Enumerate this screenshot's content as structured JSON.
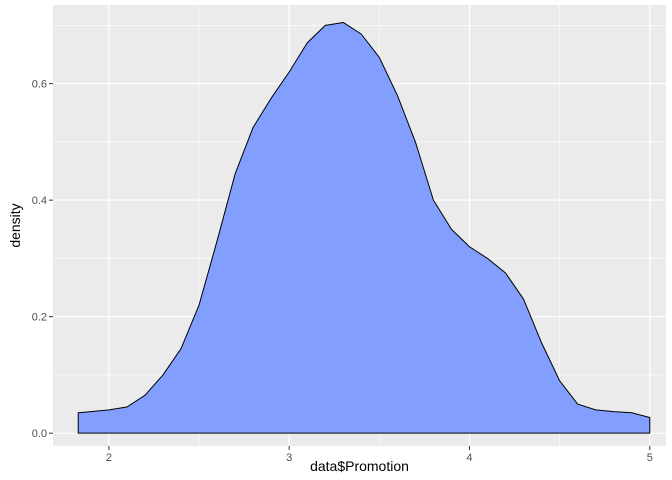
{
  "chart_data": {
    "type": "area",
    "title": "",
    "xlabel": "data$Promotion",
    "ylabel": "density",
    "xlim": [
      1.69,
      5.09
    ],
    "ylim": [
      -0.022,
      0.735
    ],
    "x_ticks": [
      2,
      3,
      4,
      5
    ],
    "y_ticks": [
      0.0,
      0.2,
      0.4,
      0.6
    ],
    "x_tick_labels": [
      "2",
      "3",
      "4",
      "5"
    ],
    "y_tick_labels": [
      "0.0",
      "0.2",
      "0.4",
      "0.6"
    ],
    "x_minor_ticks": [
      2.5,
      3.5,
      4.5
    ],
    "y_minor_ticks": [
      0.1,
      0.3,
      0.5,
      0.7
    ],
    "grid": true,
    "colors": {
      "panel": "#ebebeb",
      "grid": "#ffffff",
      "fill": "#829fff",
      "outline": "#000000"
    },
    "series": [
      {
        "x": [
          1.83,
          1.9,
          2.0,
          2.1,
          2.2,
          2.3,
          2.4,
          2.5,
          2.6,
          2.7,
          2.8,
          2.9,
          3.0,
          3.1,
          3.2,
          3.3,
          3.4,
          3.5,
          3.6,
          3.7,
          3.8,
          3.9,
          4.0,
          4.1,
          4.2,
          4.3,
          4.4,
          4.5,
          4.6,
          4.7,
          4.8,
          4.9,
          5.0
        ],
        "y": [
          0.035,
          0.037,
          0.04,
          0.045,
          0.065,
          0.1,
          0.145,
          0.22,
          0.33,
          0.445,
          0.525,
          0.575,
          0.62,
          0.67,
          0.7,
          0.705,
          0.685,
          0.645,
          0.58,
          0.5,
          0.4,
          0.35,
          0.32,
          0.3,
          0.275,
          0.23,
          0.155,
          0.09,
          0.05,
          0.04,
          0.037,
          0.035,
          0.027
        ]
      }
    ]
  }
}
